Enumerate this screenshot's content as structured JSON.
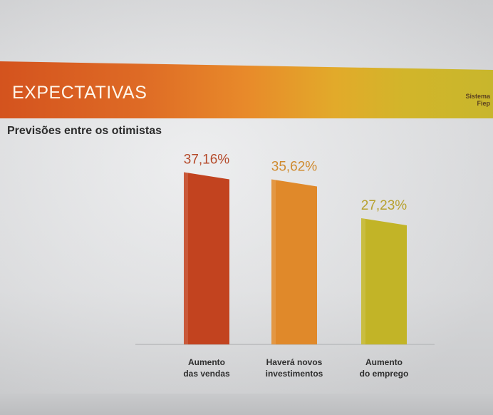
{
  "header": {
    "title": "EXPECTATIVAS",
    "brand_line1": "Sistema",
    "brand_line2": "Fiep"
  },
  "subtitle": "Previsões entre os otimistas",
  "colors": {
    "bar_1": "#c2431f",
    "bar_2": "#e0892a",
    "bar_3": "#c2b427",
    "label_1": "#b54a2a",
    "label_2": "#cf8a2e",
    "label_3": "#b7a12e"
  },
  "chart_data": {
    "type": "bar",
    "categories": [
      [
        "Aumento",
        "das vendas"
      ],
      [
        "Haverá novos",
        "investimentos"
      ],
      [
        "Aumento",
        "do emprego"
      ]
    ],
    "values": [
      37.16,
      35.62,
      27.23
    ],
    "data_labels": [
      "37,16%",
      "35,62%",
      "27,23%"
    ],
    "title": "",
    "xlabel": "",
    "ylabel": "",
    "ylim": [
      0,
      40
    ],
    "grid": false,
    "legend": "none"
  }
}
